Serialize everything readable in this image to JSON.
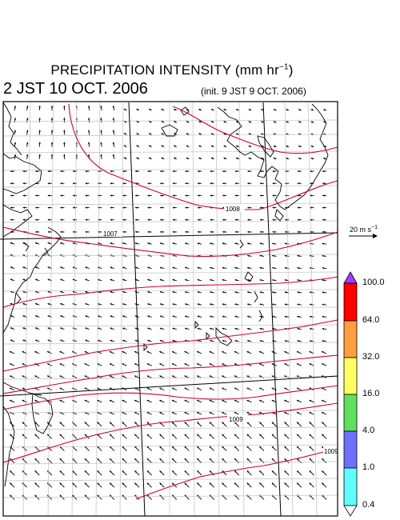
{
  "header": {
    "title_text": "PRECIPITATION INTENSITY (mm hr",
    "title_sup": "−1",
    "title_close": ")",
    "valid_time": "2 JST 10 OCT. 2006",
    "init_time": "(init. 9 JST 9 OCT. 2006)"
  },
  "reference_vector": {
    "text": "20 m s",
    "sup": "−1"
  },
  "colorbar": {
    "bins": [
      {
        "color": "#9f3fff",
        "shape": "triangle"
      },
      {
        "color": "#ff0000"
      },
      {
        "color": "#ff9f3f"
      },
      {
        "color": "#ffff5f"
      },
      {
        "color": "#5fdf5f"
      },
      {
        "color": "#6f6fff"
      },
      {
        "color": "#5fffff"
      },
      {
        "color": "#ffffff",
        "shape": "triangle"
      }
    ],
    "labels": [
      "100.0",
      "64.0",
      "32.0",
      "16.0",
      "4.0",
      "1.0",
      "0.4"
    ]
  },
  "isobars": [
    {
      "label": "1007",
      "color": "#000000"
    },
    {
      "label": "1008",
      "color": "#000000"
    },
    {
      "label": "1009",
      "color": "#000000"
    },
    {
      "label": "1009",
      "color": "#000000"
    }
  ],
  "colors": {
    "isobar": "#cc0033",
    "coast": "#000000",
    "grid": "#bfbfbf",
    "arrow": "#000000"
  }
}
